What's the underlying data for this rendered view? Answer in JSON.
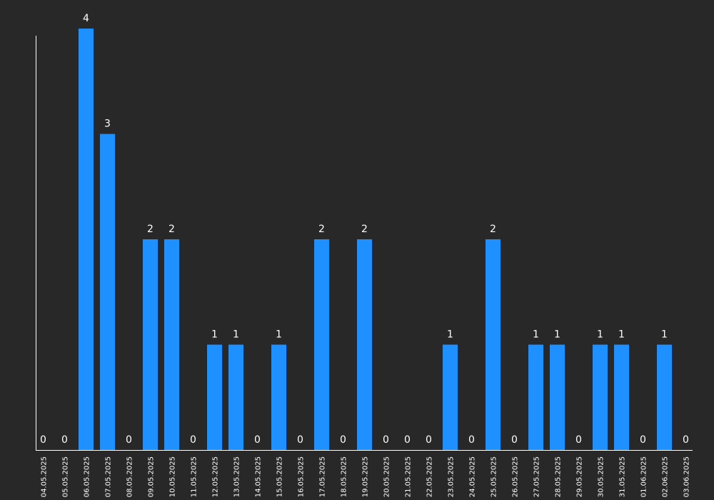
{
  "colors": {
    "background": "#282828",
    "bar": "#1e90ff",
    "axis": "#ffffff",
    "text": "#ffffff"
  },
  "chart_data": {
    "type": "bar",
    "title": "",
    "xlabel": "",
    "ylabel": "",
    "ylim": [
      0,
      4
    ],
    "grid": false,
    "categories": [
      "04.05.2025",
      "05.05.2025",
      "06.05.2025",
      "07.05.2025",
      "08.05.2025",
      "09.05.2025",
      "10.05.2025",
      "11.05.2025",
      "12.05.2025",
      "13.05.2025",
      "14.05.2025",
      "15.05.2025",
      "16.05.2025",
      "17.05.2025",
      "18.05.2025",
      "19.05.2025",
      "20.05.2025",
      "21.05.2025",
      "22.05.2025",
      "23.05.2025",
      "24.05.2025",
      "25.05.2025",
      "26.05.2025",
      "27.05.2025",
      "28.05.2025",
      "29.05.2025",
      "30.05.2025",
      "31.05.2025",
      "01.06.2025",
      "02.06.2025",
      "03.06.2025"
    ],
    "values": [
      0,
      0,
      4,
      3,
      0,
      2,
      2,
      0,
      1,
      1,
      0,
      1,
      0,
      2,
      0,
      2,
      0,
      0,
      0,
      1,
      0,
      2,
      0,
      1,
      1,
      0,
      1,
      1,
      0,
      1,
      0
    ]
  }
}
